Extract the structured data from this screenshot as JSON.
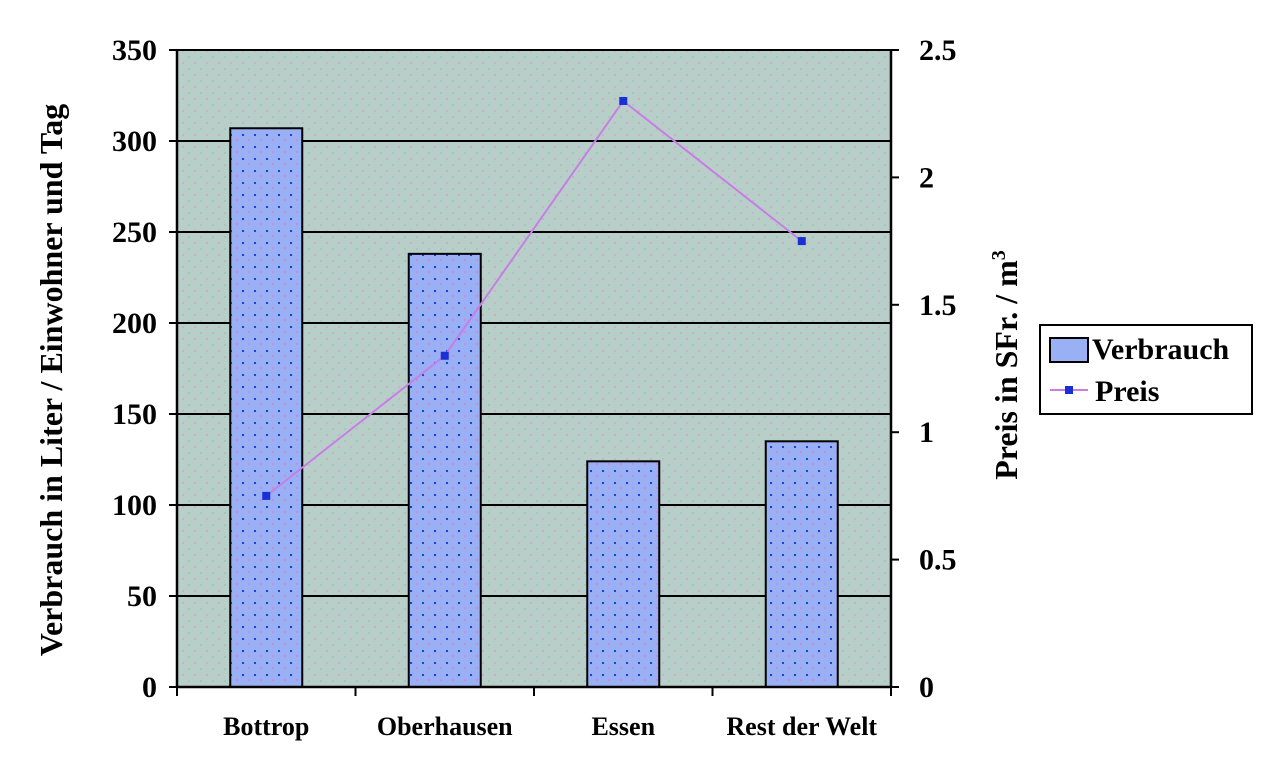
{
  "chart_data": {
    "type": "bar",
    "categories": [
      "Bottrop",
      "Oberhausen",
      "Essen",
      "Rest der Welt"
    ],
    "series": [
      {
        "name": "Verbrauch",
        "type": "bar",
        "axis": "left",
        "values": [
          307,
          238,
          124,
          135
        ]
      },
      {
        "name": "Preis",
        "type": "line",
        "axis": "right",
        "values": [
          0.75,
          1.3,
          2.3,
          1.75
        ]
      }
    ],
    "ylabel": "Verbrauch in Liter / Einwohner und Tag",
    "ylabel_right": "Preis in SFr. / m",
    "ylabel_right_superscript": "3",
    "ylim": [
      0,
      350
    ],
    "yticks": [
      "0",
      "50",
      "100",
      "150",
      "200",
      "250",
      "300",
      "350"
    ],
    "ylim_right": [
      0,
      2.5
    ],
    "yticks_right": [
      "0",
      "0.5",
      "1",
      "1.5",
      "2",
      "2.5"
    ],
    "grid": true,
    "legend_position": "right",
    "colors": {
      "plot_background": "#b8cfc9",
      "bar_fill": "#99b0f4",
      "bar_stroke": "#000000",
      "line": "#c77ee6",
      "marker": "#1a2fd6",
      "grid": "#000000"
    }
  }
}
